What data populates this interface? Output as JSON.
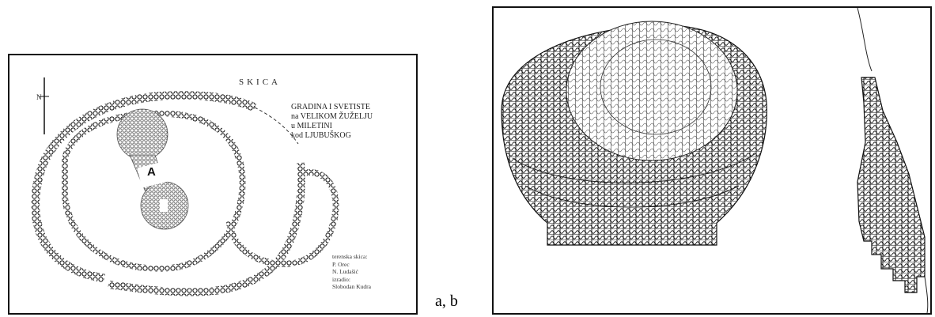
{
  "figure_a": {
    "heading": "SKICA",
    "north": "N",
    "title_lines": [
      "GRADINA I SVETISTE",
      "na VELIKOM ŽUŽELJU",
      "u MILETINI",
      "kod LJUBUŠKOG"
    ],
    "marker": "A",
    "credits": [
      "terenska skica:",
      "P. Orec",
      "N. Ludašić",
      "izradio:",
      "Slobodan Kudra"
    ]
  },
  "caption": "a, b"
}
